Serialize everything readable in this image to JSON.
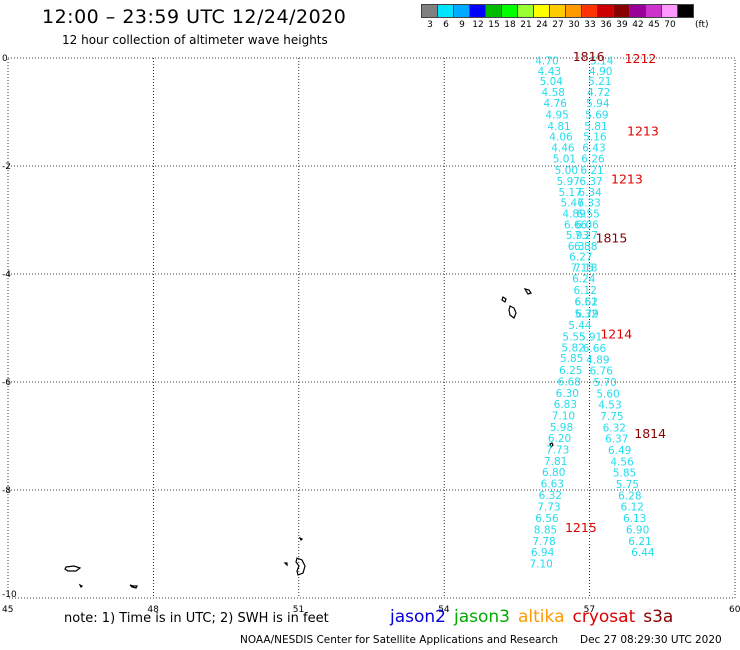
{
  "header": {
    "title": "12:00 – 23:59 UTC 12/24/2020",
    "subtitle": "12 hour collection of altimeter wave heights"
  },
  "legend": {
    "unit": "(ft)",
    "items": [
      {
        "label": "3",
        "color": "#808080"
      },
      {
        "label": "6",
        "color": "#00e5ff"
      },
      {
        "label": "9",
        "color": "#00aaff"
      },
      {
        "label": "12",
        "color": "#0000ff"
      },
      {
        "label": "15",
        "color": "#00bb00"
      },
      {
        "label": "18",
        "color": "#00ff00"
      },
      {
        "label": "21",
        "color": "#99ff33"
      },
      {
        "label": "24",
        "color": "#ffff00"
      },
      {
        "label": "27",
        "color": "#ffcc00"
      },
      {
        "label": "30",
        "color": "#ff9900"
      },
      {
        "label": "33",
        "color": "#ff3300"
      },
      {
        "label": "36",
        "color": "#cc0000"
      },
      {
        "label": "39",
        "color": "#880000"
      },
      {
        "label": "42",
        "color": "#990099"
      },
      {
        "label": "45",
        "color": "#cc33cc"
      },
      {
        "label": "70",
        "color": "#ff99ff"
      },
      {
        "label": "",
        "color": "#000000"
      }
    ]
  },
  "axes": {
    "x_ticks": [
      "45",
      "48",
      "51",
      "54",
      "57",
      "60"
    ],
    "y_ticks": [
      "0",
      "-2",
      "-4",
      "-6",
      "-8",
      "-10"
    ],
    "lon_range": [
      45,
      60
    ],
    "lat_range": [
      -10,
      0
    ]
  },
  "tracks": [
    {
      "name": "left-track",
      "color": "#22ddee",
      "points": [
        [
          56.12,
          -0.05,
          "4.70"
        ],
        [
          56.17,
          -0.24,
          "4.43"
        ],
        [
          56.21,
          -0.43,
          "5.04"
        ],
        [
          56.25,
          -0.63,
          "4.58"
        ],
        [
          56.29,
          -0.83,
          "4.76"
        ],
        [
          56.33,
          -1.05,
          "4.95"
        ],
        [
          56.37,
          -1.26,
          "4.81"
        ],
        [
          56.41,
          -1.45,
          "4.06"
        ],
        [
          56.45,
          -1.66,
          "4.46"
        ],
        [
          56.48,
          -1.86,
          "5.01"
        ],
        [
          56.52,
          -2.07,
          "5.00"
        ],
        [
          56.56,
          -2.28,
          "5.97"
        ],
        [
          56.6,
          -2.48,
          "5.17"
        ],
        [
          56.64,
          -2.68,
          "5.47"
        ],
        [
          56.68,
          -2.88,
          "4.89"
        ],
        [
          56.71,
          -3.08,
          "6.66"
        ],
        [
          56.75,
          -3.28,
          "5.93"
        ],
        [
          56.79,
          -3.48,
          "6.33"
        ],
        [
          56.82,
          -3.68,
          "6.27"
        ],
        [
          56.85,
          -3.88,
          "7.15"
        ],
        [
          56.88,
          -4.08,
          "6.24"
        ],
        [
          56.91,
          -4.3,
          "6.12"
        ],
        [
          56.93,
          -4.51,
          "6.62"
        ],
        [
          56.93,
          -4.73,
          "5.32"
        ],
        [
          56.8,
          -4.94,
          "5.44"
        ],
        [
          56.68,
          -5.16,
          "5.55"
        ],
        [
          56.66,
          -5.36,
          "5.82"
        ],
        [
          56.63,
          -5.56,
          "5.85"
        ],
        [
          56.61,
          -5.78,
          "6.25"
        ],
        [
          56.58,
          -5.99,
          "6.68"
        ],
        [
          56.54,
          -6.2,
          "6.30"
        ],
        [
          56.5,
          -6.41,
          "6.83"
        ],
        [
          56.46,
          -6.62,
          "7.10"
        ],
        [
          56.42,
          -6.83,
          "5.98"
        ],
        [
          56.38,
          -7.04,
          "6.20"
        ],
        [
          56.34,
          -7.25,
          "7.73"
        ],
        [
          56.3,
          -7.46,
          "7.81"
        ],
        [
          56.26,
          -7.67,
          "6.80"
        ],
        [
          56.23,
          -7.88,
          "6.63"
        ],
        [
          56.19,
          -8.09,
          "6.32"
        ],
        [
          56.16,
          -8.31,
          "7.73"
        ],
        [
          56.12,
          -8.52,
          "6.56"
        ],
        [
          56.09,
          -8.73,
          "8.85"
        ],
        [
          56.06,
          -8.94,
          "7.78"
        ],
        [
          56.03,
          -9.15,
          "6.94"
        ],
        [
          56.0,
          -9.36,
          "7.10"
        ]
      ]
    },
    {
      "name": "right-track",
      "color": "#22ddee",
      "points": [
        [
          57.25,
          -0.05,
          "5.14"
        ],
        [
          57.23,
          -0.24,
          "4.90"
        ],
        [
          57.21,
          -0.43,
          "5.21"
        ],
        [
          57.19,
          -0.63,
          "4.72"
        ],
        [
          57.17,
          -0.83,
          "5.94"
        ],
        [
          57.15,
          -1.05,
          "5.69"
        ],
        [
          57.13,
          -1.26,
          "5.81"
        ],
        [
          57.11,
          -1.45,
          "5.16"
        ],
        [
          57.09,
          -1.66,
          "6.43"
        ],
        [
          57.07,
          -1.86,
          "6.26"
        ],
        [
          57.05,
          -2.07,
          "6.21"
        ],
        [
          57.03,
          -2.28,
          "6.37"
        ],
        [
          57.01,
          -2.48,
          "6.34"
        ],
        [
          56.99,
          -2.68,
          "6.33"
        ],
        [
          56.97,
          -2.88,
          "6.55"
        ],
        [
          56.95,
          -3.08,
          "6.06"
        ],
        [
          56.93,
          -3.28,
          "7.27"
        ],
        [
          56.92,
          -3.48,
          "6.88"
        ],
        [
          56.92,
          -3.88,
          "7.18"
        ],
        [
          56.93,
          -4.51,
          "6.51"
        ],
        [
          56.95,
          -4.73,
          "6.79"
        ],
        [
          57.02,
          -5.16,
          "5.91"
        ],
        [
          57.1,
          -5.37,
          "6.66"
        ],
        [
          57.17,
          -5.58,
          "4.89"
        ],
        [
          57.24,
          -5.79,
          "6.76"
        ],
        [
          57.32,
          -6.0,
          "5.70"
        ],
        [
          57.38,
          -6.21,
          "5.60"
        ],
        [
          57.42,
          -6.42,
          "4.53"
        ],
        [
          57.46,
          -6.63,
          "7.75"
        ],
        [
          57.51,
          -6.84,
          "6.32"
        ],
        [
          57.56,
          -7.05,
          "6.37"
        ],
        [
          57.62,
          -7.26,
          "6.49"
        ],
        [
          57.67,
          -7.47,
          "4.56"
        ],
        [
          57.72,
          -7.68,
          "5.85"
        ],
        [
          57.78,
          -7.89,
          "5.75"
        ],
        [
          57.83,
          -8.1,
          "6.28"
        ],
        [
          57.88,
          -8.31,
          "6.12"
        ],
        [
          57.93,
          -8.52,
          "6.13"
        ],
        [
          57.99,
          -8.73,
          "6.90"
        ],
        [
          58.04,
          -8.94,
          "6.21"
        ],
        [
          58.1,
          -9.15,
          "6.44"
        ]
      ]
    }
  ],
  "time_labels": [
    {
      "text": "1816",
      "lon": 56.98,
      "lat": 0.02,
      "color": "#880000"
    },
    {
      "text": "1212",
      "lon": 58.05,
      "lat": -0.02,
      "color": "#dd0000"
    },
    {
      "text": "1213",
      "lon": 58.1,
      "lat": -1.36,
      "color": "#dd0000"
    },
    {
      "text": "1213",
      "lon": 57.77,
      "lat": -2.25,
      "color": "#dd0000"
    },
    {
      "text": "1815",
      "lon": 57.45,
      "lat": -3.34,
      "color": "#880000"
    },
    {
      "text": "1214",
      "lon": 57.55,
      "lat": -5.12,
      "color": "#dd0000"
    },
    {
      "text": "1814",
      "lon": 58.25,
      "lat": -6.96,
      "color": "#880000"
    },
    {
      "text": "1215",
      "lon": 56.82,
      "lat": -8.7,
      "color": "#dd0000"
    }
  ],
  "note": "note:  1) Time is in UTC;  2) SWH is in feet",
  "satellites": [
    {
      "name": "jason2",
      "color": "#0000dd"
    },
    {
      "name": "jason3",
      "color": "#00aa00"
    },
    {
      "name": "altika",
      "color": "#ff9900"
    },
    {
      "name": "cryosat",
      "color": "#dd0000"
    },
    {
      "name": "s3a",
      "color": "#880000"
    }
  ],
  "footer": {
    "credit": "NOAA/NESDIS Center for Satellite Applications and Research",
    "timestamp": "Dec 27 08:29:30 UTC 2020"
  }
}
